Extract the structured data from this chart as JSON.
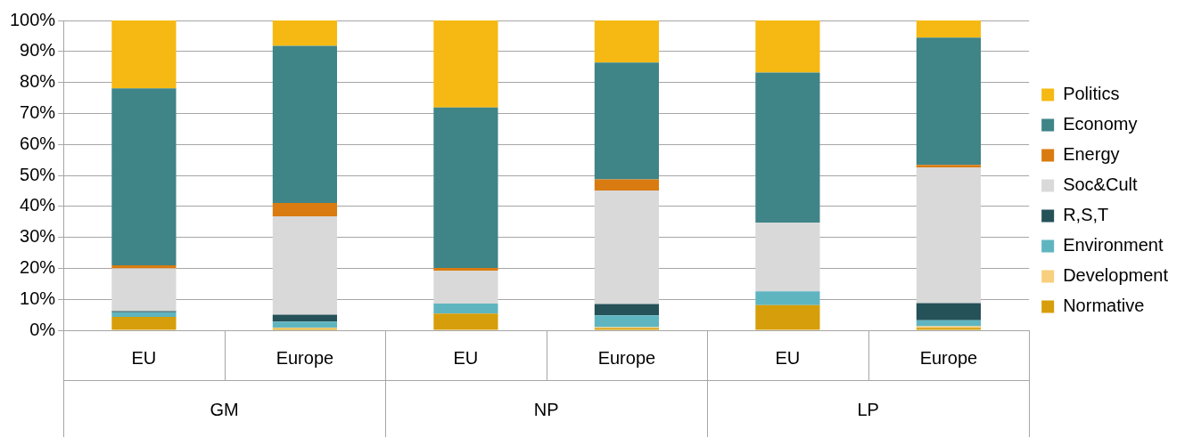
{
  "chart_data": {
    "type": "bar",
    "stacked": true,
    "categories": [
      "EU",
      "Europe",
      "EU",
      "Europe",
      "EU",
      "Europe"
    ],
    "series": [
      {
        "name": "Normative",
        "color": "#d69e0a",
        "values": [
          4.3,
          0.5,
          5.4,
          0.7,
          8.1,
          0.8
        ]
      },
      {
        "name": "Development",
        "color": "#f8cf7d",
        "values": [
          0,
          0.3,
          0,
          0.3,
          0,
          0.5
        ]
      },
      {
        "name": "Environment",
        "color": "#5fb5bf",
        "values": [
          1.5,
          2.0,
          3.2,
          3.8,
          4.5,
          1.9
        ]
      },
      {
        "name": "R,S,T",
        "color": "#255158",
        "values": [
          0.4,
          2.2,
          0,
          3.7,
          0,
          5.6
        ]
      },
      {
        "name": "Soc&Cult",
        "color": "#d9d9d9",
        "values": [
          13.8,
          31.8,
          10.6,
          36.6,
          22.1,
          43.8
        ]
      },
      {
        "name": "Energy",
        "color": "#d97b10",
        "values": [
          1,
          4.3,
          0.9,
          3.6,
          0,
          0.8
        ]
      },
      {
        "name": "Economy",
        "color": "#3f8487",
        "values": [
          57.1,
          50.7,
          51.8,
          37.7,
          48.5,
          41.1
        ]
      },
      {
        "name": "Politics",
        "color": "#f6b913",
        "values": [
          21.9,
          8.2,
          28.1,
          13.6,
          16.8,
          5.5
        ]
      }
    ],
    "ylim": [
      0,
      100
    ],
    "yticks": [
      {
        "value": 0,
        "label": "0%"
      },
      {
        "value": 10,
        "label": "10%"
      },
      {
        "value": 20,
        "label": "20%"
      },
      {
        "value": 30,
        "label": "30%"
      },
      {
        "value": 40,
        "label": "40%"
      },
      {
        "value": 50,
        "label": "50%"
      },
      {
        "value": 60,
        "label": "60%"
      },
      {
        "value": 70,
        "label": "70%"
      },
      {
        "value": 80,
        "label": "80%"
      },
      {
        "value": 90,
        "label": "90%"
      },
      {
        "value": 100,
        "label": "100%"
      }
    ],
    "annotations": [
      "GM",
      "NP",
      "LP"
    ],
    "grid": "y",
    "legend": "right"
  }
}
